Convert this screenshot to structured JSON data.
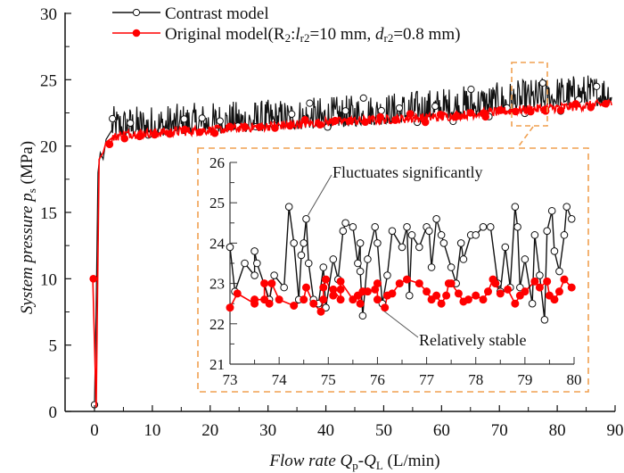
{
  "chart_data": {
    "type": "line",
    "title": "",
    "xlabel": {
      "italic": "Flow rate Q",
      "sub1": "p",
      "mid": "-Q",
      "sub2": "L",
      "unit": " (L/min)"
    },
    "ylabel": {
      "italic": "System pressure p",
      "sub": "s",
      "unit": " (MPa)"
    },
    "xlim": [
      -5,
      90
    ],
    "ylim": [
      0,
      30
    ],
    "xticks": [
      0,
      10,
      20,
      30,
      40,
      50,
      60,
      70,
      80,
      90
    ],
    "yticks": [
      0,
      5,
      10,
      15,
      20,
      25,
      30
    ],
    "grid": false,
    "legend": {
      "placement": "top-left",
      "entries": [
        {
          "label": "Contrast model",
          "color": "#111111",
          "marker": "open-circle"
        },
        {
          "label_parts": [
            "Original model(R",
            "2",
            ":",
            "l",
            "r2",
            "=10 mm, ",
            "d",
            "r2",
            "=0.8 mm)"
          ],
          "color": "#ff0000",
          "marker": "filled-circle"
        }
      ]
    },
    "series": [
      {
        "name": "Contrast model",
        "color": "#111111",
        "trend_x": [
          0,
          0.3,
          0.6,
          1.0,
          1.5,
          2.0,
          3.0,
          5,
          10,
          20,
          30,
          40,
          50,
          60,
          70,
          80,
          90
        ],
        "trend_y": [
          0.5,
          8,
          18,
          19.5,
          19,
          20.5,
          21.2,
          21.2,
          21.3,
          21.5,
          21.7,
          21.9,
          22.2,
          22.6,
          23.0,
          23.5,
          23.7
        ],
        "fluctuation_amplitude_MPa": 1.3
      },
      {
        "name": "Original model",
        "color": "#ff0000",
        "trend_x": [
          -0.3,
          0.3,
          0.8,
          1.5,
          2.0,
          3.0,
          5,
          10,
          20,
          30,
          40,
          50,
          60,
          70,
          80,
          90
        ],
        "trend_y": [
          10,
          0.3,
          19,
          19.5,
          20.3,
          20.6,
          20.9,
          21.0,
          21.2,
          21.5,
          21.8,
          22.0,
          22.2,
          22.6,
          22.9,
          23.2
        ],
        "fluctuation_amplitude_MPa": 0.35
      }
    ],
    "zoom_box": {
      "x_range": [
        73,
        80
      ],
      "y_range": [
        21.5,
        26
      ],
      "color": "#f0a050"
    },
    "inset": {
      "xlim": [
        73,
        80
      ],
      "ylim": [
        21,
        26
      ],
      "xticks": [
        73,
        74,
        75,
        76,
        77,
        78,
        79,
        80
      ],
      "yticks": [
        21,
        22,
        23,
        24,
        25,
        26
      ],
      "border_color": "#f0a050",
      "series": [
        {
          "name": "Contrast model",
          "color": "#111111",
          "x": [
            73.0,
            73.1,
            73.3,
            73.5,
            73.5,
            73.55,
            73.8,
            73.9,
            74.1,
            74.2,
            74.3,
            74.4,
            74.45,
            74.5,
            74.55,
            74.6,
            74.7,
            74.8,
            74.9,
            74.95,
            75.1,
            75.2,
            75.3,
            75.35,
            75.5,
            75.6,
            75.65,
            75.65,
            75.7,
            75.8,
            75.95,
            76.0,
            76.1,
            76.2,
            76.3,
            76.5,
            76.6,
            76.65,
            76.7,
            76.85,
            77.0,
            77.05,
            77.1,
            77.2,
            77.3,
            77.35,
            77.5,
            77.6,
            77.7,
            77.75,
            77.9,
            78.0,
            78.15,
            78.3,
            78.45,
            78.5,
            78.6,
            78.7,
            78.8,
            78.85,
            78.9,
            79.0,
            79.15,
            79.2,
            79.3,
            79.4,
            79.45,
            79.55,
            79.6,
            79.7,
            79.8,
            79.85,
            79.95
          ],
          "y": [
            23.9,
            22.8,
            23.5,
            23.2,
            23.8,
            23.5,
            22.6,
            23.2,
            22.9,
            24.9,
            24.0,
            22.6,
            23.7,
            24.0,
            24.6,
            23.5,
            22.6,
            22.5,
            23.4,
            22.4,
            23.6,
            23.1,
            24.3,
            24.5,
            24.4,
            23.5,
            24.0,
            23.3,
            22.2,
            23.6,
            24.4,
            24.0,
            22.5,
            23.2,
            24.3,
            23.9,
            24.4,
            22.7,
            24.2,
            23.9,
            24.4,
            24.3,
            23.4,
            24.6,
            24.2,
            24.0,
            23.4,
            23.0,
            24.0,
            23.6,
            24.2,
            24.2,
            24.4,
            24.4,
            23.0,
            22.8,
            23.9,
            22.9,
            24.9,
            24.4,
            22.9,
            23.6,
            22.5,
            24.2,
            23.2,
            22.1,
            24.3,
            24.8,
            23.8,
            23.3,
            24.2,
            24.9,
            24.6
          ],
          "marker": "open-circle"
        },
        {
          "name": "Original model",
          "color": "#ff0000",
          "x": [
            73.0,
            73.15,
            73.5,
            73.5,
            73.7,
            73.7,
            73.8,
            73.85,
            74.0,
            74.3,
            74.5,
            74.55,
            74.7,
            74.85,
            74.9,
            74.9,
            74.95,
            75.1,
            75.1,
            75.25,
            75.25,
            75.25,
            75.5,
            75.6,
            75.65,
            75.7,
            75.8,
            75.95,
            76.0,
            76.0,
            76.15,
            76.2,
            76.3,
            76.45,
            76.6,
            76.85,
            77.0,
            77.1,
            77.2,
            77.3,
            77.4,
            77.45,
            77.5,
            77.65,
            77.75,
            77.85,
            78.0,
            78.15,
            78.25,
            78.35,
            78.4,
            78.5,
            78.65,
            78.8,
            78.9,
            79.0,
            79.2,
            79.3,
            79.45,
            79.5,
            79.6,
            79.7,
            79.8,
            79.95
          ],
          "y": [
            22.4,
            22.75,
            22.5,
            22.6,
            22.6,
            23.0,
            22.5,
            23.0,
            22.6,
            22.45,
            22.6,
            22.9,
            22.5,
            22.3,
            22.6,
            22.9,
            23.1,
            22.7,
            22.85,
            22.6,
            22.85,
            23.05,
            22.6,
            22.7,
            22.5,
            22.8,
            22.8,
            22.85,
            23.0,
            22.6,
            22.4,
            22.7,
            22.75,
            23.0,
            23.1,
            23.0,
            22.8,
            22.6,
            22.7,
            22.5,
            22.7,
            23.0,
            23.0,
            22.75,
            22.55,
            22.6,
            22.7,
            22.6,
            22.8,
            23.1,
            23.0,
            22.75,
            22.85,
            22.5,
            22.7,
            22.8,
            23.05,
            22.9,
            23.05,
            22.7,
            22.6,
            22.8,
            23.1,
            22.9
          ],
          "marker": "filled-circle"
        }
      ],
      "annotations": [
        {
          "text": "Fluctuates significantly",
          "points_to": [
            74.55,
            24.6
          ]
        },
        {
          "text": "Relatively stable",
          "points_to": [
            76.1,
            22.4
          ]
        }
      ]
    }
  }
}
